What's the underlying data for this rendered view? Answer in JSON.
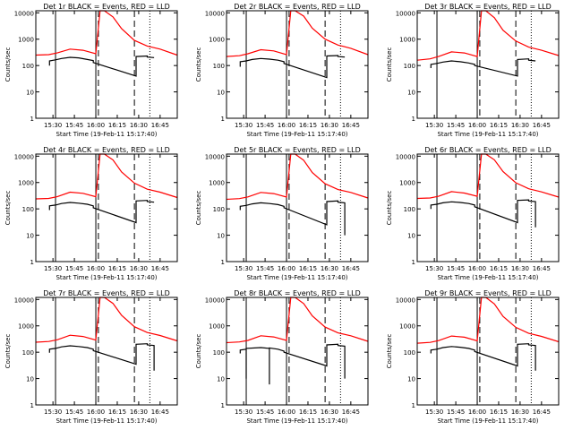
{
  "figure": {
    "xlabel": "Start Time (19-Feb-11 15:17:40)",
    "ylabel": "Counts/sec",
    "colors": {
      "events": "#000000",
      "lld": "#ff0000",
      "axis": "#000000",
      "background": "#ffffff"
    },
    "time_ticks": [
      "15:30",
      "15:45",
      "16:00",
      "16:15",
      "16:30",
      "16:45"
    ],
    "y_ticks": [
      "1",
      "10",
      "100",
      "1000",
      "10000"
    ]
  },
  "chart_data": [
    {
      "type": "line",
      "title": "Det 1r BLACK = Events, RED = LLD",
      "xlabel": "Start Time (19-Feb-11 15:17:40)",
      "ylabel": "Counts/sec",
      "yscale": "log",
      "xlim": [
        15.3,
        16.95
      ],
      "ylim": [
        1,
        12000
      ],
      "vlines": {
        "solid": [
          15.53,
          16.0
        ],
        "dashed": [
          16.03,
          16.45
        ],
        "dotted": [
          16.63
        ]
      },
      "series": [
        {
          "name": "LLD",
          "color": "#ff0000",
          "x": [
            15.3,
            15.45,
            15.55,
            15.7,
            15.85,
            16.0,
            16.05,
            16.1,
            16.2,
            16.3,
            16.45,
            16.6,
            16.75,
            16.95
          ],
          "y": [
            250,
            260,
            300,
            420,
            380,
            280,
            12000,
            12000,
            7000,
            2500,
            900,
            550,
            420,
            250
          ]
        },
        {
          "name": "Events",
          "color": "#000000",
          "x": [
            15.46,
            15.46,
            15.53,
            15.6,
            15.7,
            15.8,
            15.9,
            15.97,
            15.97,
            16.47,
            16.47,
            16.6,
            16.6,
            16.68
          ],
          "y": [
            100,
            150,
            165,
            185,
            205,
            195,
            170,
            155,
            130,
            40,
            220,
            230,
            210,
            200
          ]
        }
      ]
    },
    {
      "type": "line",
      "title": "Det 2r BLACK = Events, RED = LLD",
      "xlabel": "Start Time (19-Feb-11 15:17:40)",
      "ylabel": "Counts/sec",
      "yscale": "log",
      "xlim": [
        15.3,
        16.95
      ],
      "ylim": [
        1,
        12000
      ],
      "vlines": {
        "solid": [
          15.53,
          16.0
        ],
        "dashed": [
          16.03,
          16.45
        ],
        "dotted": [
          16.63
        ]
      },
      "series": [
        {
          "name": "LLD",
          "color": "#ff0000",
          "x": [
            15.3,
            15.45,
            15.55,
            15.7,
            15.85,
            16.0,
            16.05,
            16.1,
            16.2,
            16.3,
            16.45,
            16.6,
            16.75,
            16.95
          ],
          "y": [
            220,
            235,
            280,
            400,
            360,
            260,
            12000,
            12000,
            7500,
            2600,
            1000,
            600,
            450,
            260
          ]
        },
        {
          "name": "Events",
          "color": "#000000",
          "x": [
            15.46,
            15.46,
            15.53,
            15.6,
            15.7,
            15.8,
            15.9,
            15.97,
            15.97,
            16.47,
            16.47,
            16.6,
            16.6,
            16.68
          ],
          "y": [
            90,
            140,
            150,
            170,
            185,
            175,
            160,
            140,
            120,
            35,
            230,
            240,
            220,
            210
          ]
        }
      ]
    },
    {
      "type": "line",
      "title": "Det 3r BLACK = Events, RED = LLD",
      "xlabel": "Start Time (19-Feb-11 15:17:40)",
      "ylabel": "Counts/sec",
      "yscale": "log",
      "xlim": [
        15.3,
        16.95
      ],
      "ylim": [
        1,
        12000
      ],
      "vlines": {
        "solid": [
          15.53,
          16.0
        ],
        "dashed": [
          16.03,
          16.45
        ],
        "dotted": [
          16.63
        ]
      },
      "series": [
        {
          "name": "LLD",
          "color": "#ff0000",
          "x": [
            15.3,
            15.45,
            15.55,
            15.7,
            15.85,
            16.0,
            16.05,
            16.1,
            16.2,
            16.3,
            16.45,
            16.6,
            16.75,
            16.95
          ],
          "y": [
            160,
            180,
            220,
            330,
            300,
            220,
            12000,
            12000,
            6500,
            2200,
            850,
            500,
            380,
            240
          ]
        },
        {
          "name": "Events",
          "color": "#000000",
          "x": [
            15.46,
            15.46,
            15.53,
            15.6,
            15.7,
            15.8,
            15.9,
            15.97,
            15.97,
            16.47,
            16.47,
            16.6,
            16.6,
            16.68
          ],
          "y": [
            80,
            110,
            120,
            135,
            150,
            140,
            125,
            110,
            100,
            40,
            170,
            180,
            160,
            150
          ]
        }
      ]
    },
    {
      "type": "line",
      "title": "Det 4r BLACK = Events, RED = LLD",
      "xlabel": "Start Time (19-Feb-11 15:17:40)",
      "ylabel": "Counts/sec",
      "yscale": "log",
      "xlim": [
        15.3,
        16.95
      ],
      "ylim": [
        1,
        12000
      ],
      "vlines": {
        "solid": [
          15.53,
          16.0
        ],
        "dashed": [
          16.03,
          16.45
        ],
        "dotted": [
          16.63
        ]
      },
      "series": [
        {
          "name": "LLD",
          "color": "#ff0000",
          "x": [
            15.3,
            15.45,
            15.55,
            15.7,
            15.85,
            16.0,
            16.05,
            16.1,
            16.2,
            16.3,
            16.45,
            16.6,
            16.75,
            16.95
          ],
          "y": [
            240,
            250,
            290,
            430,
            390,
            290,
            12000,
            12000,
            7200,
            2500,
            950,
            560,
            430,
            270
          ]
        },
        {
          "name": "Events",
          "color": "#000000",
          "x": [
            15.46,
            15.46,
            15.53,
            15.6,
            15.7,
            15.8,
            15.9,
            15.97,
            15.97,
            16.47,
            16.47,
            16.6,
            16.6,
            16.68
          ],
          "y": [
            90,
            130,
            140,
            160,
            175,
            165,
            150,
            130,
            110,
            30,
            200,
            210,
            190,
            180
          ]
        }
      ]
    },
    {
      "type": "line",
      "title": "Det 5r BLACK = Events, RED = LLD",
      "xlabel": "Start Time (19-Feb-11 15:17:40)",
      "ylabel": "Counts/sec",
      "yscale": "log",
      "xlim": [
        15.3,
        16.95
      ],
      "ylim": [
        1,
        12000
      ],
      "vlines": {
        "solid": [
          15.53,
          16.0
        ],
        "dashed": [
          16.03,
          16.45
        ],
        "dotted": [
          16.63
        ]
      },
      "series": [
        {
          "name": "LLD",
          "color": "#ff0000",
          "x": [
            15.3,
            15.45,
            15.55,
            15.7,
            15.85,
            16.0,
            16.05,
            16.1,
            16.2,
            16.3,
            16.45,
            16.6,
            16.75,
            16.95
          ],
          "y": [
            230,
            245,
            285,
            420,
            380,
            280,
            12000,
            12000,
            7000,
            2400,
            900,
            540,
            420,
            260
          ]
        },
        {
          "name": "Events",
          "color": "#000000",
          "x": [
            15.46,
            15.46,
            15.53,
            15.6,
            15.7,
            15.8,
            15.9,
            15.97,
            15.97,
            16.47,
            16.47,
            16.6,
            16.6,
            16.68,
            16.68
          ],
          "y": [
            90,
            125,
            135,
            155,
            170,
            160,
            145,
            125,
            110,
            25,
            190,
            200,
            180,
            170,
            10
          ]
        }
      ]
    },
    {
      "type": "line",
      "title": "Det 6r BLACK = Events, RED = LLD",
      "xlabel": "Start Time (19-Feb-11 15:17:40)",
      "ylabel": "Counts/sec",
      "yscale": "log",
      "xlim": [
        15.3,
        16.95
      ],
      "ylim": [
        1,
        12000
      ],
      "vlines": {
        "solid": [
          15.53,
          16.0
        ],
        "dashed": [
          16.03,
          16.45
        ],
        "dotted": [
          16.63
        ]
      },
      "series": [
        {
          "name": "LLD",
          "color": "#ff0000",
          "x": [
            15.3,
            15.45,
            15.55,
            15.7,
            15.85,
            16.0,
            16.05,
            16.1,
            16.2,
            16.3,
            16.45,
            16.6,
            16.75,
            16.95
          ],
          "y": [
            250,
            260,
            300,
            450,
            400,
            300,
            12000,
            12000,
            7300,
            2600,
            980,
            580,
            440,
            280
          ]
        },
        {
          "name": "Events",
          "color": "#000000",
          "x": [
            15.46,
            15.46,
            15.53,
            15.6,
            15.7,
            15.8,
            15.9,
            15.97,
            15.97,
            16.47,
            16.47,
            16.6,
            16.6,
            16.68,
            16.68
          ],
          "y": [
            100,
            140,
            150,
            170,
            185,
            175,
            160,
            140,
            120,
            30,
            210,
            220,
            200,
            190,
            20
          ]
        }
      ]
    },
    {
      "type": "line",
      "title": "Det 7r BLACK = Events, RED = LLD",
      "xlabel": "Start Time (19-Feb-11 15:17:40)",
      "ylabel": "Counts/sec",
      "yscale": "log",
      "xlim": [
        15.3,
        16.95
      ],
      "ylim": [
        1,
        12000
      ],
      "vlines": {
        "solid": [
          15.53,
          16.0
        ],
        "dashed": [
          16.03,
          16.45
        ],
        "dotted": [
          16.63
        ]
      },
      "series": [
        {
          "name": "LLD",
          "color": "#ff0000",
          "x": [
            15.3,
            15.45,
            15.55,
            15.7,
            15.85,
            16.0,
            16.05,
            16.1,
            16.2,
            16.3,
            16.45,
            16.6,
            16.75,
            16.95
          ],
          "y": [
            240,
            255,
            295,
            440,
            395,
            290,
            12000,
            12000,
            7100,
            2500,
            930,
            560,
            430,
            270
          ]
        },
        {
          "name": "Events",
          "color": "#000000",
          "x": [
            15.46,
            15.46,
            15.53,
            15.6,
            15.7,
            15.8,
            15.9,
            15.97,
            15.97,
            16.47,
            16.47,
            16.6,
            16.6,
            16.68,
            16.68
          ],
          "y": [
            95,
            130,
            140,
            160,
            175,
            165,
            150,
            130,
            115,
            35,
            200,
            210,
            190,
            180,
            20
          ]
        }
      ]
    },
    {
      "type": "line",
      "title": "Det 8r BLACK = Events, RED = LLD",
      "xlabel": "Start Time (19-Feb-11 15:17:40)",
      "ylabel": "Counts/sec",
      "yscale": "log",
      "xlim": [
        15.3,
        16.95
      ],
      "ylim": [
        1,
        12000
      ],
      "vlines": {
        "solid": [
          15.53,
          16.0
        ],
        "dashed": [
          16.03,
          16.45
        ],
        "dotted": [
          16.63
        ]
      },
      "series": [
        {
          "name": "LLD",
          "color": "#ff0000",
          "x": [
            15.3,
            15.45,
            15.55,
            15.7,
            15.85,
            16.0,
            16.05,
            16.1,
            16.2,
            16.3,
            16.45,
            16.6,
            16.75,
            16.95
          ],
          "y": [
            230,
            245,
            280,
            420,
            380,
            280,
            12000,
            12000,
            7000,
            2400,
            900,
            540,
            420,
            260
          ]
        },
        {
          "name": "Events",
          "color": "#000000",
          "x": [
            15.46,
            15.46,
            15.53,
            15.53,
            15.53,
            15.7,
            15.8,
            15.8,
            15.8,
            15.9,
            15.97,
            15.97,
            16.47,
            16.47,
            16.6,
            16.6,
            16.68,
            16.68
          ],
          "y": [
            90,
            120,
            130,
            10,
            140,
            150,
            140,
            6,
            145,
            130,
            110,
            100,
            30,
            190,
            200,
            180,
            170,
            10
          ]
        }
      ]
    },
    {
      "type": "line",
      "title": "Det 9r BLACK = Events, RED = LLD",
      "xlabel": "Start Time (19-Feb-11 15:17:40)",
      "ylabel": "Counts/sec",
      "yscale": "log",
      "xlim": [
        15.3,
        16.95
      ],
      "ylim": [
        1,
        12000
      ],
      "vlines": {
        "solid": [
          15.53,
          16.0
        ],
        "dashed": [
          16.03,
          16.45
        ],
        "dotted": [
          16.63
        ]
      },
      "series": [
        {
          "name": "LLD",
          "color": "#ff0000",
          "x": [
            15.3,
            15.45,
            15.55,
            15.7,
            15.85,
            16.0,
            16.05,
            16.1,
            16.2,
            16.3,
            16.45,
            16.6,
            16.75,
            16.95
          ],
          "y": [
            220,
            235,
            275,
            410,
            370,
            270,
            12000,
            12000,
            6800,
            2300,
            880,
            520,
            400,
            250
          ]
        },
        {
          "name": "Events",
          "color": "#000000",
          "x": [
            15.46,
            15.46,
            15.53,
            15.6,
            15.7,
            15.8,
            15.9,
            15.97,
            15.97,
            16.47,
            16.47,
            16.6,
            16.6,
            16.68,
            16.68
          ],
          "y": [
            90,
            120,
            130,
            150,
            165,
            155,
            140,
            120,
            105,
            30,
            200,
            210,
            190,
            180,
            20
          ]
        }
      ]
    }
  ]
}
